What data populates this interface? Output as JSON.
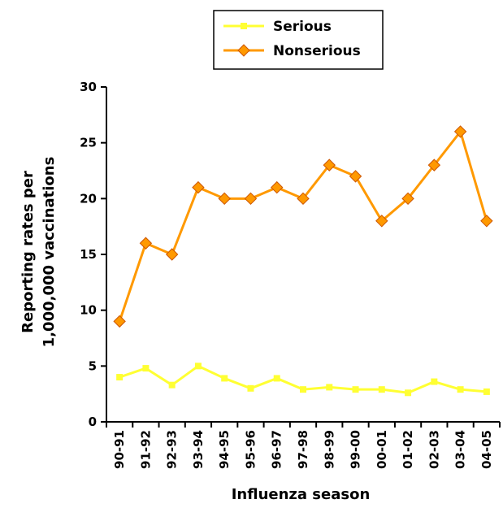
{
  "chart_data": {
    "type": "line",
    "title": "",
    "xlabel": "Influenza season",
    "ylabel": [
      "Reporting rates per",
      "1,000,000 vaccinations"
    ],
    "ylim": [
      0,
      30
    ],
    "yticks": [
      "0",
      "5",
      "10",
      "15",
      "20",
      "25",
      "30"
    ],
    "categories": [
      "90-91",
      "91-92",
      "92-93",
      "93-94",
      "94-95",
      "95-96",
      "96-97",
      "97-98",
      "98-99",
      "99-00",
      "00-01",
      "01-02",
      "02-03",
      "03-04",
      "04-05"
    ],
    "grid": false,
    "legend": "top-center",
    "series": [
      {
        "name": "Serious",
        "color": "#ffff33",
        "marker": "square",
        "values": [
          4.0,
          4.8,
          3.3,
          5.0,
          3.9,
          3.0,
          3.9,
          2.9,
          3.1,
          2.9,
          2.9,
          2.6,
          3.6,
          2.9,
          2.7
        ]
      },
      {
        "name": "Nonserious",
        "color": "#ff9900",
        "marker": "diamond",
        "values": [
          9,
          16,
          15,
          21,
          20,
          20,
          21,
          20,
          23,
          22,
          18,
          20,
          23,
          26,
          18
        ]
      }
    ]
  }
}
